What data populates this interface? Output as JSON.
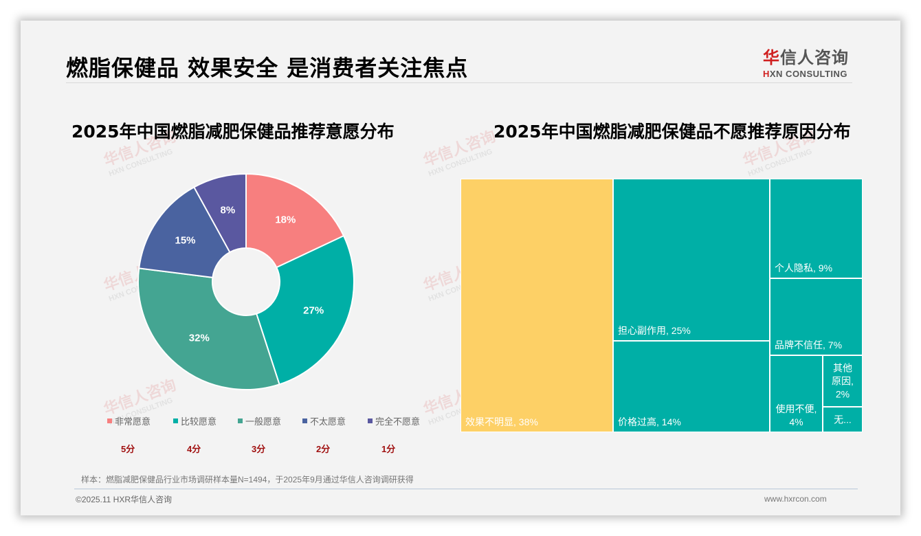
{
  "page": {
    "title": "燃脂保健品 效果安全 是消费者关注焦点",
    "logo": {
      "cn_red": "华",
      "cn_rest": "信人咨询",
      "en_red": "H",
      "en_rest": "XN CONSULTING"
    },
    "watermark": {
      "cn": "华信人咨询",
      "en": "HXN CONSULTING"
    },
    "note": "样本：燃脂减肥保健品行业市场调研样本量N=1494，于2025年9月通过华信人咨询调研获得",
    "footer_left": "©2025.11 HXR华信人咨询",
    "footer_right": "www.hxrcon.com"
  },
  "chart_data": [
    {
      "type": "pie",
      "subtype": "donut",
      "title": "2025年中国燃脂减肥保健品推荐意愿分布",
      "categories": [
        "非常愿意",
        "比较愿意",
        "一般愿意",
        "不太愿意",
        "完全不愿意"
      ],
      "values": [
        18,
        27,
        32,
        15,
        8
      ],
      "labels": [
        "18%",
        "27%",
        "32%",
        "15%",
        "8%"
      ],
      "scores": [
        "5分",
        "4分",
        "3分",
        "2分",
        "1分"
      ],
      "colors": [
        "#f77f7f",
        "#00afa6",
        "#44a592",
        "#4a63a0",
        "#5a58a0"
      ],
      "legend_position": "bottom"
    },
    {
      "type": "treemap",
      "title": "2025年中国燃脂减肥保健品不愿推荐原因分布",
      "categories": [
        "效果不明显",
        "担心副作用",
        "价格过高",
        "个人隐私",
        "品牌不信任",
        "使用不便",
        "其他原因",
        "无..."
      ],
      "values": [
        38,
        25,
        14,
        9,
        7,
        4,
        2,
        1
      ],
      "labels": [
        "效果不明显, 38%",
        "担心副作用, 25%",
        "价格过高, 14%",
        "个人隐私, 9%",
        "品牌不信任, 7%",
        "使用不便, 4%",
        "其他原因, 2%",
        "无..."
      ],
      "colors": {
        "highlight": "#fdd066",
        "default": "#00afa6"
      }
    }
  ]
}
